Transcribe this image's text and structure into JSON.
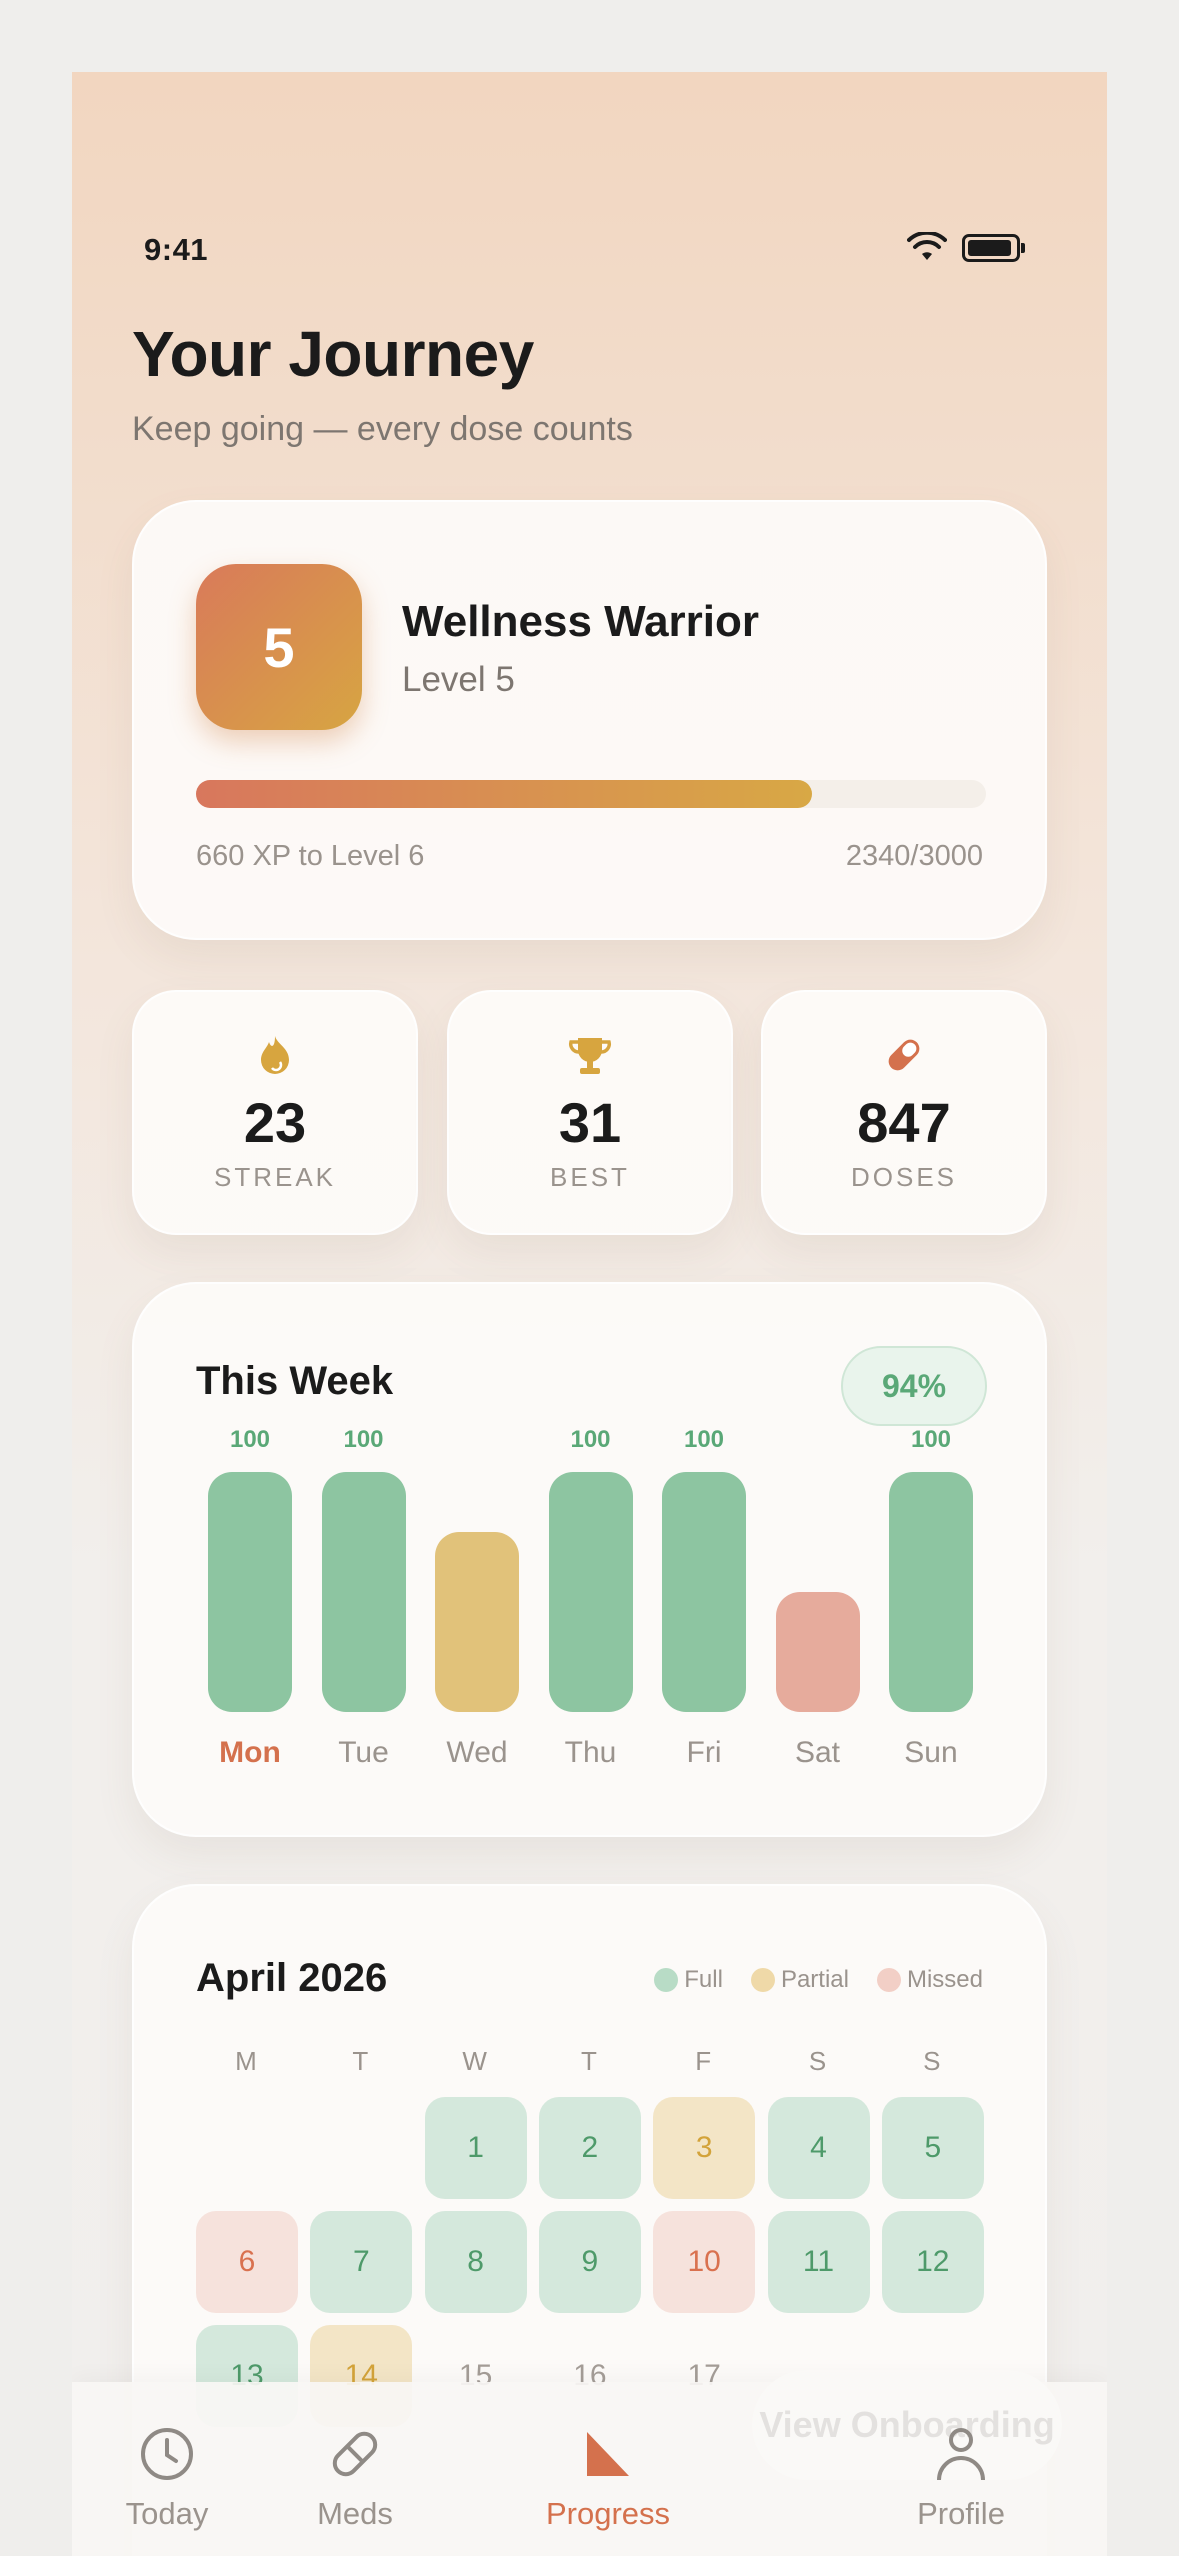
{
  "status": {
    "time": "9:41"
  },
  "header": {
    "title": "Your Journey",
    "subtitle": "Keep going — every dose counts"
  },
  "level": {
    "badge": "5",
    "rank_title": "Wellness Warrior",
    "level_label": "Level 5",
    "xp_to_next": "660 XP to Level 6",
    "xp_progress_text": "2340/3000",
    "xp_fraction": 0.78
  },
  "stats": [
    {
      "icon": "flame-icon",
      "value": "23",
      "label": "STREAK"
    },
    {
      "icon": "trophy-icon",
      "value": "31",
      "label": "BEST"
    },
    {
      "icon": "pill-icon",
      "value": "847",
      "label": "DOSES"
    }
  ],
  "week": {
    "title": "This Week",
    "percent": "94%",
    "days": [
      {
        "day": "Mon",
        "value": 100,
        "label": "100",
        "status": "full",
        "today": true
      },
      {
        "day": "Tue",
        "value": 100,
        "label": "100",
        "status": "full"
      },
      {
        "day": "Wed",
        "value": 75,
        "label": "",
        "status": "partial"
      },
      {
        "day": "Thu",
        "value": 100,
        "label": "100",
        "status": "full"
      },
      {
        "day": "Fri",
        "value": 100,
        "label": "100",
        "status": "full"
      },
      {
        "day": "Sat",
        "value": 50,
        "label": "",
        "status": "missed"
      },
      {
        "day": "Sun",
        "value": 100,
        "label": "100",
        "status": "full"
      }
    ]
  },
  "calendar": {
    "title": "April 2026",
    "legend": [
      {
        "label": "Full",
        "color": "#b8dcc6"
      },
      {
        "label": "Partial",
        "color": "#efd9a8"
      },
      {
        "label": "Missed",
        "color": "#f2cfc6"
      }
    ],
    "weekdays": [
      "M",
      "T",
      "W",
      "T",
      "F",
      "S",
      "S"
    ],
    "start_offset": 2,
    "days": [
      {
        "d": "1",
        "s": "full"
      },
      {
        "d": "2",
        "s": "full"
      },
      {
        "d": "3",
        "s": "partial"
      },
      {
        "d": "4",
        "s": "full"
      },
      {
        "d": "5",
        "s": "full"
      },
      {
        "d": "6",
        "s": "missed"
      },
      {
        "d": "7",
        "s": "full"
      },
      {
        "d": "8",
        "s": "full"
      },
      {
        "d": "9",
        "s": "full"
      },
      {
        "d": "10",
        "s": "missed"
      },
      {
        "d": "11",
        "s": "full"
      },
      {
        "d": "12",
        "s": "full"
      },
      {
        "d": "13",
        "s": "full"
      },
      {
        "d": "14",
        "s": "partial"
      },
      {
        "d": "15",
        "s": "empty"
      },
      {
        "d": "16",
        "s": "empty"
      },
      {
        "d": "17",
        "s": "empty"
      }
    ]
  },
  "colors": {
    "accent": "#d4714d",
    "full": "#8dc5a1",
    "partial": "#e1c27a",
    "missed": "#e6ab9c"
  },
  "onboarding_button": "View Onboarding",
  "tabs": [
    {
      "label": "Today",
      "icon": "clock-icon",
      "active": false
    },
    {
      "label": "Meds",
      "icon": "pill-icon",
      "active": false
    },
    {
      "label": "Progress",
      "icon": "chart-icon",
      "active": true
    },
    {
      "label": "Profile",
      "icon": "person-icon",
      "active": false
    }
  ]
}
